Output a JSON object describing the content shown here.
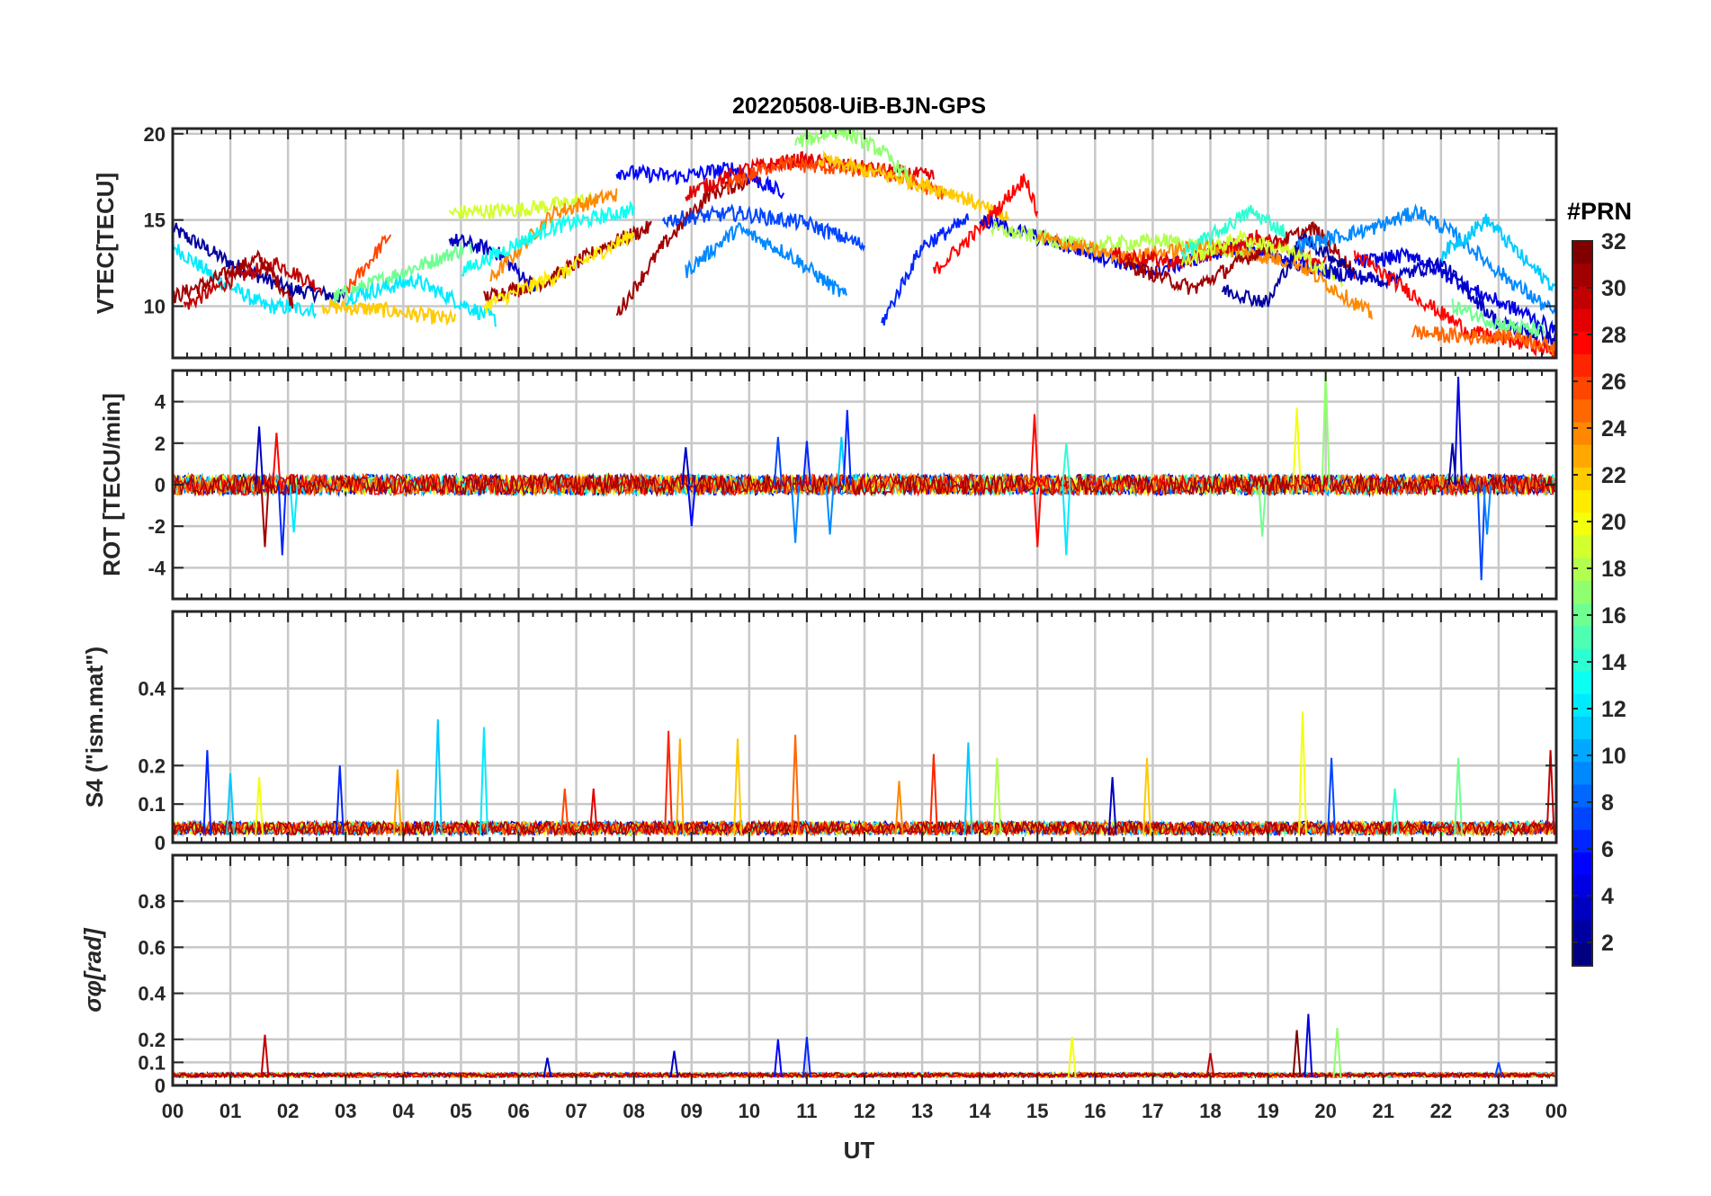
{
  "chart_data": {
    "type": "line",
    "title": "20220508-UiB-BJN-GPS",
    "xlabel": "UT",
    "x_ticks": [
      "00",
      "01",
      "02",
      "03",
      "04",
      "05",
      "06",
      "07",
      "08",
      "09",
      "10",
      "11",
      "12",
      "13",
      "14",
      "15",
      "16",
      "17",
      "18",
      "19",
      "20",
      "21",
      "22",
      "23",
      "00"
    ],
    "x_range_hours": [
      0,
      24
    ],
    "grid": true,
    "colorbar": {
      "label": "#PRN",
      "range": [
        1,
        32
      ],
      "ticks": [
        "2",
        "4",
        "6",
        "8",
        "10",
        "12",
        "14",
        "16",
        "18",
        "20",
        "22",
        "24",
        "26",
        "28",
        "30",
        "32"
      ],
      "colormap": "jet"
    },
    "panels": [
      {
        "ylabel": "VTEC[TECU]",
        "ylim": [
          7,
          20.3
        ],
        "yticks": [
          "10",
          "15",
          "20"
        ],
        "ytick_values": [
          10,
          15,
          20
        ],
        "tracks": [
          {
            "prn": 2,
            "t": [
              0.0,
              1.0,
              2.0,
              3.0
            ],
            "v": [
              14.5,
              12.5,
              11.0,
              10.5
            ]
          },
          {
            "prn": 12,
            "t": [
              0.0,
              0.8,
              1.6,
              2.5
            ],
            "v": [
              13.5,
              11.5,
              10.0,
              9.8
            ]
          },
          {
            "prn": 30,
            "t": [
              0.2,
              1.0,
              1.8,
              2.6
            ],
            "v": [
              10.0,
              11.5,
              12.5,
              11.0
            ]
          },
          {
            "prn": 31,
            "t": [
              0.0,
              0.7,
              1.5,
              2.1
            ],
            "v": [
              10.5,
              11.5,
              12.8,
              10.2
            ]
          },
          {
            "prn": 22,
            "t": [
              2.6,
              3.6,
              4.9
            ],
            "v": [
              10.0,
              9.8,
              9.2
            ]
          },
          {
            "prn": 26,
            "t": [
              3.0,
              3.8
            ],
            "v": [
              10.8,
              14.3
            ]
          },
          {
            "prn": 16,
            "t": [
              2.8,
              4.0,
              5.2
            ],
            "v": [
              10.5,
              12.0,
              13.5
            ]
          },
          {
            "prn": 12,
            "t": [
              3.0,
              4.2,
              5.6
            ],
            "v": [
              10.5,
              11.5,
              9.2
            ]
          },
          {
            "prn": 3,
            "t": [
              4.8,
              5.6,
              6.3
            ],
            "v": [
              13.9,
              13.2,
              11.0
            ]
          },
          {
            "prn": 19,
            "t": [
              4.8,
              6.0,
              7.3
            ],
            "v": [
              15.4,
              15.6,
              16.2
            ]
          },
          {
            "prn": 24,
            "t": [
              5.5,
              6.6,
              7.7
            ],
            "v": [
              11.5,
              15.4,
              16.5
            ]
          },
          {
            "prn": 31,
            "t": [
              5.4,
              6.5,
              7.5,
              8.3
            ],
            "v": [
              10.5,
              11.5,
              13.5,
              14.6
            ]
          },
          {
            "prn": 21,
            "t": [
              5.4,
              6.8,
              8.0
            ],
            "v": [
              10.0,
              12.0,
              14.2
            ]
          },
          {
            "prn": 13,
            "t": [
              5.0,
              6.5,
              8.0
            ],
            "v": [
              12.0,
              14.5,
              15.6
            ]
          },
          {
            "prn": 31,
            "t": [
              7.7,
              8.5,
              9.3,
              10.2
            ],
            "v": [
              9.5,
              13.5,
              16.5,
              17.5
            ]
          },
          {
            "prn": 5,
            "t": [
              7.7,
              8.8,
              9.7,
              10.6
            ],
            "v": [
              17.8,
              17.5,
              18.0,
              16.5
            ]
          },
          {
            "prn": 9,
            "t": [
              8.9,
              9.8,
              10.7,
              11.7
            ],
            "v": [
              12.0,
              14.5,
              13.0,
              10.5
            ]
          },
          {
            "prn": 7,
            "t": [
              8.5,
              9.8,
              11.0,
              12.0
            ],
            "v": [
              15.0,
              15.4,
              14.8,
              13.5
            ]
          },
          {
            "prn": 29,
            "t": [
              8.9,
              10.0,
              10.9,
              12.0,
              13.2
            ],
            "v": [
              16.5,
              18.0,
              18.5,
              18.0,
              17.5
            ]
          },
          {
            "prn": 26,
            "t": [
              9.6,
              10.5,
              11.5,
              12.3,
              13.4
            ],
            "v": [
              17.0,
              18.3,
              18.0,
              17.8,
              16.5
            ]
          },
          {
            "prn": 17,
            "t": [
              10.8,
              11.6,
              12.3,
              12.8
            ],
            "v": [
              19.5,
              20.2,
              19.0,
              17.3
            ]
          },
          {
            "prn": 22,
            "t": [
              11.2,
              12.5,
              13.6,
              14.5
            ],
            "v": [
              18.5,
              17.5,
              16.5,
              15.0
            ]
          },
          {
            "prn": 6,
            "t": [
              12.3,
              13.0,
              13.8
            ],
            "v": [
              9.0,
              13.5,
              15.0
            ]
          },
          {
            "prn": 28,
            "t": [
              13.2,
              14.0,
              14.8,
              15.0
            ],
            "v": [
              12.0,
              14.5,
              17.5,
              15.3
            ]
          },
          {
            "prn": 4,
            "t": [
              14.0,
              15.5,
              17.0,
              18.5,
              20.0
            ],
            "v": [
              15.0,
              13.5,
              12.0,
              13.5,
              12.0
            ]
          },
          {
            "prn": 18,
            "t": [
              14.2,
              15.8,
              17.2,
              18.8
            ],
            "v": [
              14.5,
              13.5,
              13.8,
              13.0
            ]
          },
          {
            "prn": 24,
            "t": [
              15.0,
              16.5,
              18.0,
              19.5,
              20.8
            ],
            "v": [
              14.0,
              12.8,
              13.5,
              12.5,
              9.5
            ]
          },
          {
            "prn": 31,
            "t": [
              16.5,
              17.7,
              19.0,
              19.8,
              20.5
            ],
            "v": [
              12.5,
              11.0,
              13.5,
              14.5,
              12.0
            ]
          },
          {
            "prn": 29,
            "t": [
              16.3,
              17.5,
              18.8,
              20.0
            ],
            "v": [
              13.0,
              12.5,
              14.0,
              12.5
            ]
          },
          {
            "prn": 2,
            "t": [
              18.2,
              19.0,
              19.6,
              20.5
            ],
            "v": [
              11.0,
              10.2,
              14.0,
              12.0
            ]
          },
          {
            "prn": 19,
            "t": [
              17.5,
              18.5,
              19.5,
              20.3
            ],
            "v": [
              12.5,
              14.0,
              13.0,
              11.5
            ]
          },
          {
            "prn": 14,
            "t": [
              17.5,
              18.7,
              19.3
            ],
            "v": [
              13.0,
              15.5,
              14.3
            ]
          },
          {
            "prn": 9,
            "t": [
              19.5,
              20.8,
              21.6,
              22.3,
              23.0,
              24.0
            ],
            "v": [
              13.5,
              14.5,
              15.5,
              14.0,
              12.0,
              9.5
            ]
          },
          {
            "prn": 4,
            "t": [
              20.5,
              21.5,
              22.5,
              23.5,
              24.0
            ],
            "v": [
              12.5,
              13.0,
              11.0,
              9.5,
              8.5
            ]
          },
          {
            "prn": 3,
            "t": [
              20.0,
              21.0,
              22.0,
              23.0,
              24.0
            ],
            "v": [
              12.0,
              11.5,
              12.5,
              9.0,
              8.0
            ]
          },
          {
            "prn": 28,
            "t": [
              20.5,
              21.6,
              22.5,
              23.5,
              24.0
            ],
            "v": [
              13.0,
              10.5,
              8.5,
              7.8,
              7.3
            ]
          },
          {
            "prn": 25,
            "t": [
              21.5,
              22.5,
              23.3,
              24.0
            ],
            "v": [
              8.5,
              8.2,
              8.3,
              7.5
            ]
          },
          {
            "prn": 11,
            "t": [
              22.0,
              22.8,
              23.5,
              24.0
            ],
            "v": [
              13.0,
              15.0,
              12.5,
              11.0
            ]
          },
          {
            "prn": 16,
            "t": [
              22.2,
              23.0,
              23.8
            ],
            "v": [
              10.0,
              9.0,
              8.5
            ]
          }
        ]
      },
      {
        "ylabel": "ROT [TECU/min]",
        "ylim": [
          -5.5,
          5.5
        ],
        "yticks": [
          "-4",
          "-2",
          "0",
          "2",
          "4"
        ],
        "ytick_values": [
          -4,
          -2,
          0,
          2,
          4
        ],
        "spikes": [
          {
            "prn": 3,
            "t": 1.5,
            "v": 2.8
          },
          {
            "prn": 31,
            "t": 1.6,
            "v": -3.0
          },
          {
            "prn": 28,
            "t": 1.8,
            "v": 2.5
          },
          {
            "prn": 6,
            "t": 1.9,
            "v": -3.4
          },
          {
            "prn": 12,
            "t": 2.1,
            "v": -2.3
          },
          {
            "prn": 3,
            "t": 8.9,
            "v": 1.8
          },
          {
            "prn": 5,
            "t": 9.0,
            "v": -2.0
          },
          {
            "prn": 7,
            "t": 10.5,
            "v": 2.3
          },
          {
            "prn": 9,
            "t": 10.8,
            "v": -2.8
          },
          {
            "prn": 6,
            "t": 11.0,
            "v": 2.1
          },
          {
            "prn": 9,
            "t": 11.4,
            "v": -2.4
          },
          {
            "prn": 11,
            "t": 11.6,
            "v": 2.3
          },
          {
            "prn": 6,
            "t": 11.7,
            "v": 3.6
          },
          {
            "prn": 28,
            "t": 14.95,
            "v": 3.4
          },
          {
            "prn": 28,
            "t": 15.0,
            "v": -3.0
          },
          {
            "prn": 12,
            "t": 15.5,
            "v": -3.4
          },
          {
            "prn": 14,
            "t": 15.5,
            "v": 2.0
          },
          {
            "prn": 16,
            "t": 18.9,
            "v": -2.5
          },
          {
            "prn": 17,
            "t": 20.0,
            "v": 5.4
          },
          {
            "prn": 20,
            "t": 19.5,
            "v": 3.7
          },
          {
            "prn": 4,
            "t": 22.3,
            "v": 5.2
          },
          {
            "prn": 2,
            "t": 22.2,
            "v": 2.0
          },
          {
            "prn": 7,
            "t": 22.7,
            "v": -4.6
          },
          {
            "prn": 9,
            "t": 22.8,
            "v": -2.4
          }
        ]
      },
      {
        "ylabel": "S4 (\"ism.mat\")",
        "ylim": [
          0,
          0.6
        ],
        "yticks": [
          "0",
          "0.1",
          "0.2",
          "0.4"
        ],
        "ytick_values": [
          0,
          0.1,
          0.2,
          0.4
        ],
        "peaks": [
          {
            "prn": 6,
            "t": 0.6,
            "v": 0.24
          },
          {
            "prn": 11,
            "t": 1.0,
            "v": 0.18
          },
          {
            "prn": 20,
            "t": 1.5,
            "v": 0.17
          },
          {
            "prn": 6,
            "t": 2.9,
            "v": 0.2
          },
          {
            "prn": 23,
            "t": 3.9,
            "v": 0.19
          },
          {
            "prn": 11,
            "t": 4.6,
            "v": 0.32
          },
          {
            "prn": 12,
            "t": 5.4,
            "v": 0.3
          },
          {
            "prn": 26,
            "t": 6.8,
            "v": 0.14
          },
          {
            "prn": 29,
            "t": 7.3,
            "v": 0.14
          },
          {
            "prn": 27,
            "t": 8.6,
            "v": 0.29
          },
          {
            "prn": 23,
            "t": 8.8,
            "v": 0.27
          },
          {
            "prn": 22,
            "t": 9.8,
            "v": 0.27
          },
          {
            "prn": 25,
            "t": 10.8,
            "v": 0.28
          },
          {
            "prn": 24,
            "t": 12.6,
            "v": 0.16
          },
          {
            "prn": 27,
            "t": 13.2,
            "v": 0.23
          },
          {
            "prn": 11,
            "t": 13.8,
            "v": 0.26
          },
          {
            "prn": 18,
            "t": 14.3,
            "v": 0.22
          },
          {
            "prn": 3,
            "t": 16.3,
            "v": 0.17
          },
          {
            "prn": 22,
            "t": 16.9,
            "v": 0.22
          },
          {
            "prn": 20,
            "t": 19.6,
            "v": 0.34
          },
          {
            "prn": 7,
            "t": 20.1,
            "v": 0.22
          },
          {
            "prn": 14,
            "t": 21.2,
            "v": 0.14
          },
          {
            "prn": 16,
            "t": 22.3,
            "v": 0.22
          },
          {
            "prn": 30,
            "t": 23.9,
            "v": 0.24
          }
        ]
      },
      {
        "ylabel": "σφ[rad]",
        "ylim": [
          0,
          1.0
        ],
        "yticks": [
          "0",
          "0.1",
          "0.2",
          "0.4",
          "0.6",
          "0.8"
        ],
        "ytick_values": [
          0,
          0.1,
          0.2,
          0.4,
          0.6,
          0.8
        ],
        "peaks": [
          {
            "prn": 30,
            "t": 1.6,
            "v": 0.22
          },
          {
            "prn": 3,
            "t": 6.5,
            "v": 0.12
          },
          {
            "prn": 3,
            "t": 8.7,
            "v": 0.15
          },
          {
            "prn": 5,
            "t": 10.5,
            "v": 0.2
          },
          {
            "prn": 6,
            "t": 11.0,
            "v": 0.21
          },
          {
            "prn": 20,
            "t": 15.6,
            "v": 0.21
          },
          {
            "prn": 30,
            "t": 18.0,
            "v": 0.14
          },
          {
            "prn": 32,
            "t": 19.5,
            "v": 0.24
          },
          {
            "prn": 4,
            "t": 19.7,
            "v": 0.31
          },
          {
            "prn": 17,
            "t": 20.2,
            "v": 0.25
          },
          {
            "prn": 7,
            "t": 23.0,
            "v": 0.1
          }
        ]
      }
    ]
  }
}
